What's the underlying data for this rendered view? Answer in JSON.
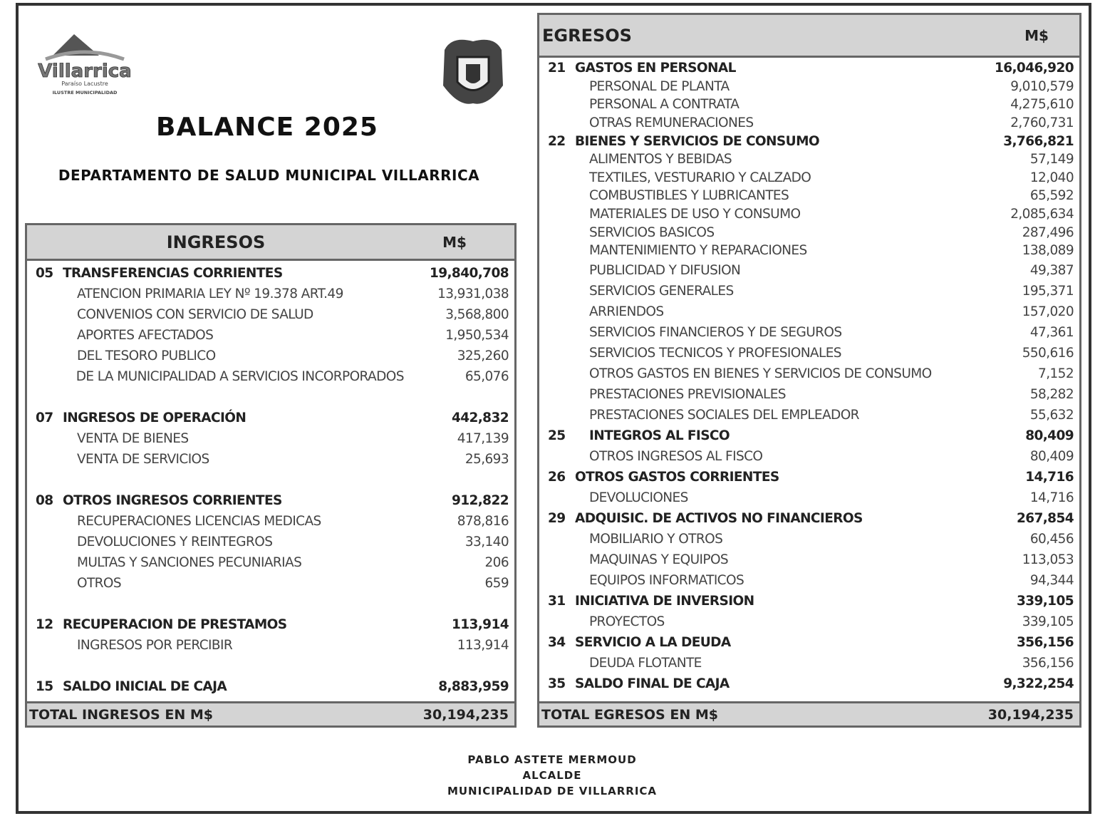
{
  "header": {
    "logo_text": "Villarrica",
    "logo_sub": "Paraíso Lacustre",
    "logo_sub2": "ILUSTRE MUNICIPALIDAD",
    "title": "BALANCE 2025",
    "subtitle": "DEPARTAMENTO DE SALUD MUNICIPAL VILLARRICA"
  },
  "ingresos": {
    "title": "INGRESOS",
    "unit": "M$",
    "rows": [
      {
        "code": "05",
        "label": "TRANSFERENCIAS CORRIENTES",
        "value": "19,840,708",
        "type": "b"
      },
      {
        "label": "ATENCION PRIMARIA LEY Nº 19.378 ART.49",
        "value": "13,931,038",
        "type": "s"
      },
      {
        "label": "CONVENIOS CON SERVICIO DE SALUD",
        "value": "3,568,800",
        "type": "s"
      },
      {
        "label": "APORTES AFECTADOS",
        "value": "1,950,534",
        "type": "s"
      },
      {
        "label": "DEL TESORO PUBLICO",
        "value": "325,260",
        "type": "s"
      },
      {
        "label": "DE LA MUNICIPALIDAD A SERVICIOS INCORPORADOS",
        "value": "65,076",
        "type": "s"
      },
      {
        "type": "blank"
      },
      {
        "code": "07",
        "label": "INGRESOS DE OPERACIÓN",
        "value": "442,832",
        "type": "b"
      },
      {
        "label": "VENTA DE BIENES",
        "value": "417,139",
        "type": "s"
      },
      {
        "label": "VENTA DE SERVICIOS",
        "value": "25,693",
        "type": "s"
      },
      {
        "type": "blank"
      },
      {
        "code": "08",
        "label": "OTROS INGRESOS CORRIENTES",
        "value": "912,822",
        "type": "b"
      },
      {
        "label": "RECUPERACIONES LICENCIAS MEDICAS",
        "value": "878,816",
        "type": "s"
      },
      {
        "label": "DEVOLUCIONES Y REINTEGROS",
        "value": "33,140",
        "type": "s"
      },
      {
        "label": "MULTAS Y SANCIONES PECUNIARIAS",
        "value": "206",
        "type": "s"
      },
      {
        "label": "OTROS",
        "value": "659",
        "type": "s"
      },
      {
        "type": "blank"
      },
      {
        "code": "12",
        "label": "RECUPERACION DE PRESTAMOS",
        "value": "113,914",
        "type": "b"
      },
      {
        "label": "INGRESOS POR PERCIBIR",
        "value": "113,914",
        "type": "s"
      },
      {
        "type": "blank"
      },
      {
        "code": "15",
        "label": "SALDO INICIAL DE CAJA",
        "value": "8,883,959",
        "type": "b"
      }
    ],
    "total_label": "TOTAL INGRESOS EN M$",
    "total_value": "30,194,235"
  },
  "egresos": {
    "title": "EGRESOS",
    "unit": "M$",
    "rows": [
      {
        "code": "21",
        "label": "GASTOS EN PERSONAL",
        "value": "16,046,920",
        "type": "b"
      },
      {
        "label": "PERSONAL DE PLANTA",
        "value": "9,010,579",
        "type": "s"
      },
      {
        "label": "PERSONAL A CONTRATA",
        "value": "4,275,610",
        "type": "s"
      },
      {
        "label": "OTRAS REMUNERACIONES",
        "value": "2,760,731",
        "type": "s"
      },
      {
        "code": "22",
        "label": "BIENES Y SERVICIOS DE CONSUMO",
        "value": "3,766,821",
        "type": "b"
      },
      {
        "label": "ALIMENTOS Y BEBIDAS",
        "value": "57,149",
        "type": "s"
      },
      {
        "label": "TEXTILES, VESTURARIO Y CALZADO",
        "value": "12,040",
        "type": "s"
      },
      {
        "label": "COMBUSTIBLES Y LUBRICANTES",
        "value": "65,592",
        "type": "s"
      },
      {
        "label": "MATERIALES DE USO Y CONSUMO",
        "value": "2,085,634",
        "type": "s"
      },
      {
        "label": "SERVICIOS BASICOS",
        "value": "287,496",
        "type": "s"
      },
      {
        "label": "MANTENIMIENTO Y REPARACIONES",
        "value": "138,089",
        "type": "s"
      },
      {
        "label": "PUBLICIDAD Y DIFUSION",
        "value": "49,387",
        "type": "s"
      },
      {
        "label": "SERVICIOS GENERALES",
        "value": "195,371",
        "type": "s"
      },
      {
        "label": "ARRIENDOS",
        "value": "157,020",
        "type": "s"
      },
      {
        "label": "SERVICIOS FINANCIEROS Y DE SEGUROS",
        "value": "47,361",
        "type": "s"
      },
      {
        "label": "SERVICIOS TECNICOS Y PROFESIONALES",
        "value": "550,616",
        "type": "s"
      },
      {
        "label": "OTROS GASTOS EN BIENES Y SERVICIOS DE CONSUMO",
        "value": "7,152",
        "type": "s"
      },
      {
        "label": "PRESTACIONES PREVISIONALES",
        "value": "58,282",
        "type": "s"
      },
      {
        "label": "PRESTACIONES SOCIALES DEL EMPLEADOR",
        "value": "55,632",
        "type": "s"
      },
      {
        "code": "25",
        "label": "INTEGROS AL FISCO",
        "value": "80,409",
        "type": "b ind"
      },
      {
        "label": "OTROS INGRESOS AL FISCO",
        "value": "80,409",
        "type": "s"
      },
      {
        "code": "26",
        "label": "OTROS GASTOS CORRIENTES",
        "value": "14,716",
        "type": "b"
      },
      {
        "label": "DEVOLUCIONES",
        "value": "14,716",
        "type": "s"
      },
      {
        "code": "29",
        "label": "ADQUISIC. DE ACTIVOS NO FINANCIEROS",
        "value": "267,854",
        "type": "b"
      },
      {
        "label": "MOBILIARIO Y OTROS",
        "value": "60,456",
        "type": "s"
      },
      {
        "label": "MAQUINAS Y EQUIPOS",
        "value": "113,053",
        "type": "s"
      },
      {
        "label": "EQUIPOS INFORMATICOS",
        "value": "94,344",
        "type": "s"
      },
      {
        "code": "31",
        "label": "INICIATIVA DE INVERSION",
        "value": "339,105",
        "type": "b"
      },
      {
        "label": "PROYECTOS",
        "value": "339,105",
        "type": "s"
      },
      {
        "code": "34",
        "label": "SERVICIO A LA DEUDA",
        "value": "356,156",
        "type": "b"
      },
      {
        "label": "DEUDA FLOTANTE",
        "value": "356,156",
        "type": "s"
      },
      {
        "code": "35",
        "label": "SALDO FINAL DE CAJA",
        "value": "9,322,254",
        "type": "b"
      }
    ],
    "total_label": "TOTAL EGRESOS EN M$",
    "total_value": "30,194,235"
  },
  "signature": {
    "name": "PABLO ASTETE MERMOUD",
    "role": "ALCALDE",
    "org": "MUNICIPALIDAD DE VILLARRICA"
  }
}
